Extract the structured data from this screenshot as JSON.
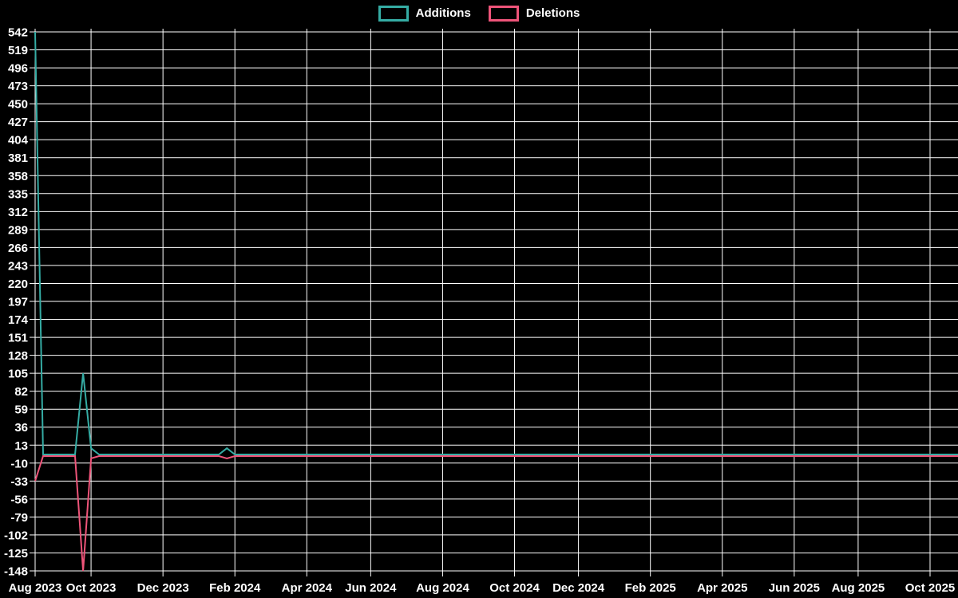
{
  "legend": {
    "items": [
      {
        "label": "Additions",
        "color": "#35ACA4"
      },
      {
        "label": "Deletions",
        "color": "#EE5479"
      }
    ]
  },
  "chart_data": {
    "type": "line",
    "title": "",
    "xlabel": "",
    "ylabel": "",
    "x_unit": "week",
    "x_tick_labels": [
      {
        "label": "Aug 2023",
        "week": 0
      },
      {
        "label": "Oct 2023",
        "week": 7
      },
      {
        "label": "Dec 2023",
        "week": 16
      },
      {
        "label": "Feb 2024",
        "week": 25
      },
      {
        "label": "Apr 2024",
        "week": 34
      },
      {
        "label": "Jun 2024",
        "week": 42
      },
      {
        "label": "Aug 2024",
        "week": 51
      },
      {
        "label": "Oct 2024",
        "week": 60
      },
      {
        "label": "Dec 2024",
        "week": 68
      },
      {
        "label": "Feb 2025",
        "week": 77
      },
      {
        "label": "Apr 2025",
        "week": 86
      },
      {
        "label": "Jun 2025",
        "week": 95
      },
      {
        "label": "Aug 2025",
        "week": 103
      },
      {
        "label": "Oct 2025",
        "week": 112
      }
    ],
    "y_axis": {
      "max": 542,
      "min": -148,
      "step": 23
    },
    "y_ticks": [
      542,
      519,
      496,
      473,
      450,
      427,
      404,
      381,
      358,
      335,
      312,
      289,
      266,
      243,
      220,
      197,
      174,
      151,
      128,
      105,
      82,
      59,
      36,
      13,
      -10,
      -33,
      -56,
      -79,
      -102,
      -125,
      -148
    ],
    "layout": {
      "background": "#000000",
      "grid": true,
      "grid_color": "#ffffff",
      "text_color": "#ffffff",
      "legend_position": "top-center"
    },
    "series": [
      {
        "name": "Additions",
        "color": "#35ACA4",
        "values": [
          542,
          1,
          1,
          1,
          1,
          1,
          105,
          9,
          1,
          1,
          1,
          1,
          1,
          1,
          1,
          1,
          1,
          1,
          1,
          1,
          1,
          1,
          1,
          1,
          9,
          1,
          1,
          1,
          1,
          1,
          1,
          1,
          1,
          1,
          1,
          1,
          1,
          1,
          1,
          1,
          1,
          1,
          1,
          1,
          1,
          1,
          1,
          1,
          1,
          1,
          1,
          1,
          1,
          1,
          1,
          1,
          1,
          1,
          1,
          1,
          1,
          1,
          1,
          1,
          1,
          1,
          1,
          1,
          1,
          1,
          1,
          1,
          1,
          1,
          1,
          1,
          1,
          1,
          1,
          1,
          1,
          1,
          1,
          1,
          1,
          1,
          1,
          1,
          1,
          1,
          1,
          1,
          1,
          1,
          1,
          1,
          1,
          1,
          1,
          1,
          1,
          1,
          1,
          1,
          1,
          1,
          1,
          1,
          1,
          1,
          1,
          1,
          1,
          1,
          1,
          1
        ]
      },
      {
        "name": "Deletions",
        "color": "#EE5479",
        "values": [
          -33,
          -1,
          -1,
          -1,
          -1,
          -1,
          -148,
          -4,
          -1,
          -1,
          -1,
          -1,
          -1,
          -1,
          -1,
          -1,
          -1,
          -1,
          -1,
          -1,
          -1,
          -1,
          -1,
          -1,
          -4,
          -1,
          -1,
          -1,
          -1,
          -1,
          -1,
          -1,
          -1,
          -1,
          -1,
          -1,
          -1,
          -1,
          -1,
          -1,
          -1,
          -1,
          -1,
          -1,
          -1,
          -1,
          -1,
          -1,
          -1,
          -1,
          -1,
          -1,
          -1,
          -1,
          -1,
          -1,
          -1,
          -1,
          -1,
          -1,
          -1,
          -1,
          -1,
          -1,
          -1,
          -1,
          -1,
          -1,
          -1,
          -1,
          -1,
          -1,
          -1,
          -1,
          -1,
          -1,
          -1,
          -1,
          -1,
          -1,
          -1,
          -1,
          -1,
          -1,
          -1,
          -1,
          -1,
          -1,
          -1,
          -1,
          -1,
          -1,
          -1,
          -1,
          -1,
          -1,
          -1,
          -1,
          -1,
          -1,
          -1,
          -1,
          -1,
          -1,
          -1,
          -1,
          -1,
          -1,
          -1,
          -1,
          -1,
          -1,
          -1,
          -1,
          -1,
          -1
        ]
      }
    ]
  }
}
